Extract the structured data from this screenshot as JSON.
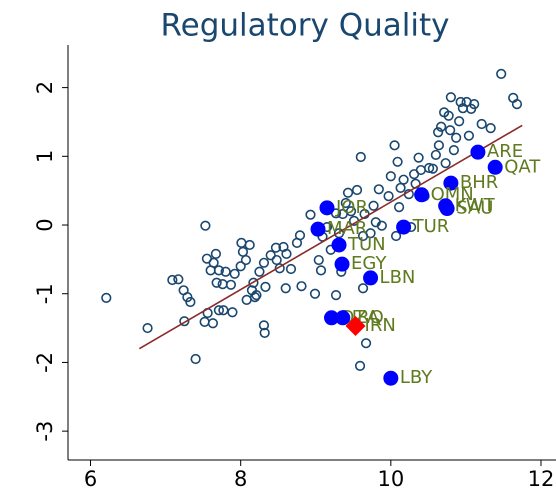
{
  "chart_data": {
    "type": "scatter",
    "title": "Regulatory Quality",
    "xlim": [
      5.7,
      12.2
    ],
    "ylim": [
      -3.42,
      2.62
    ],
    "xticks": [
      6,
      8,
      10,
      12
    ],
    "yticks": [
      -3,
      -2,
      -1,
      0,
      1,
      2
    ],
    "series": [
      {
        "marker": "hollow-circle",
        "color": "#1a476f",
        "x": [
          6.21,
          6.76,
          7.09,
          7.17,
          7.24,
          7.29,
          7.33,
          7.25,
          7.56,
          7.52,
          7.63,
          7.71,
          7.67,
          7.71,
          7.68,
          7.6,
          7.64,
          7.55,
          7.8,
          7.76,
          7.87,
          7.92,
          8.0,
          8.03,
          8.07,
          8.01,
          8.12,
          8.17,
          8.15,
          8.25,
          8.21,
          8.33,
          8.31,
          8.4,
          8.47,
          8.48,
          8.52,
          8.57,
          8.61,
          8.6,
          8.67,
          8.75,
          8.79,
          8.81,
          8.93,
          8.99,
          9.04,
          9.07,
          9.09,
          9.15,
          9.2,
          9.27,
          9.31,
          9.36,
          9.4,
          9.47,
          9.51,
          9.55,
          9.43,
          9.6,
          9.63,
          9.63,
          9.65,
          9.73,
          9.77,
          9.8,
          9.84,
          9.88,
          9.97,
          10.0,
          10.05,
          10.07,
          10.09,
          10.11,
          10.13,
          10.17,
          10.24,
          10.27,
          10.31,
          10.33,
          10.37,
          10.4,
          10.45,
          10.51,
          10.56,
          10.6,
          10.63,
          10.64,
          10.67,
          10.71,
          10.73,
          10.77,
          10.79,
          10.8,
          10.84,
          10.87,
          10.91,
          10.93,
          10.96,
          11.01,
          11.04,
          11.07,
          11.11,
          11.21,
          11.33,
          11.47,
          11.63,
          11.68,
          8.31,
          8.32,
          7.4,
          7.89,
          8.19,
          7.53,
          8.08,
          7.77,
          9.59,
          9.67,
          9.34,
          9.27
        ],
        "values": [
          -1.06,
          -1.5,
          -0.8,
          -0.79,
          -0.95,
          -1.05,
          -1.12,
          -1.4,
          -1.28,
          -1.41,
          -1.43,
          -1.24,
          -0.42,
          -0.66,
          -0.84,
          -0.66,
          -0.55,
          -0.49,
          -0.68,
          -0.86,
          -0.87,
          -0.71,
          -0.6,
          -0.39,
          -0.51,
          -0.26,
          -0.29,
          -0.84,
          -0.95,
          -0.68,
          -1.02,
          -0.9,
          -0.55,
          -0.44,
          -0.33,
          -0.51,
          -0.63,
          -0.32,
          -0.42,
          -0.92,
          -0.64,
          -0.26,
          -0.15,
          -0.89,
          0.15,
          -1.0,
          -0.51,
          -0.66,
          -0.17,
          -0.03,
          -0.36,
          0.17,
          -0.12,
          0.16,
          0.32,
          0.2,
          0.06,
          0.51,
          0.47,
          0.99,
          -0.16,
          -0.92,
          0.16,
          -0.12,
          0.28,
          0.04,
          0.52,
          -0.01,
          0.42,
          0.71,
          1.16,
          -0.16,
          0.92,
          0.26,
          0.54,
          0.66,
          0.45,
          -0.03,
          0.74,
          0.6,
          0.98,
          0.8,
          0.42,
          0.83,
          0.82,
          1.02,
          1.35,
          1.16,
          1.43,
          1.64,
          0.9,
          1.59,
          1.38,
          1.86,
          1.09,
          1.27,
          1.51,
          1.79,
          1.7,
          1.79,
          1.3,
          1.69,
          1.76,
          1.47,
          1.41,
          2.2,
          1.85,
          1.76,
          -1.46,
          -1.57,
          -1.95,
          -1.27,
          -1.05,
          -0.01,
          -1.09,
          -1.24,
          -2.05,
          -1.72,
          -0.68,
          -1.02
        ]
      },
      {
        "marker": "line",
        "color": "#8b2a2a",
        "x": [
          6.65,
          11.75
        ],
        "values": [
          -1.8,
          1.45
        ]
      },
      {
        "marker": "filled-circle",
        "color": "#0000ff",
        "x": [
          11.16,
          11.39,
          10.8,
          10.41,
          10.73,
          10.75,
          10.17,
          9.31,
          9.03,
          9.15,
          9.73,
          9.35,
          9.21,
          9.36,
          10.0
        ],
        "values": [
          1.06,
          0.84,
          0.61,
          0.44,
          0.28,
          0.24,
          -0.03,
          -0.29,
          -0.06,
          0.25,
          -0.77,
          -0.57,
          -1.35,
          -1.35,
          -2.23
        ],
        "labels": [
          "ARE",
          "QAT",
          "BHR",
          "OMN",
          "KWT",
          "SAU",
          "TUR",
          "TUN",
          "MAR",
          "JOR",
          "LBN",
          "EGY",
          "DZA",
          "IRQ",
          "LBY"
        ],
        "label_color": "#5f7a1f"
      },
      {
        "marker": "diamond",
        "color": "#ff0000",
        "x": [
          9.53
        ],
        "values": [
          -1.47
        ],
        "labels": [
          "IRN"
        ],
        "label_color": "#5f7a1f"
      }
    ]
  }
}
